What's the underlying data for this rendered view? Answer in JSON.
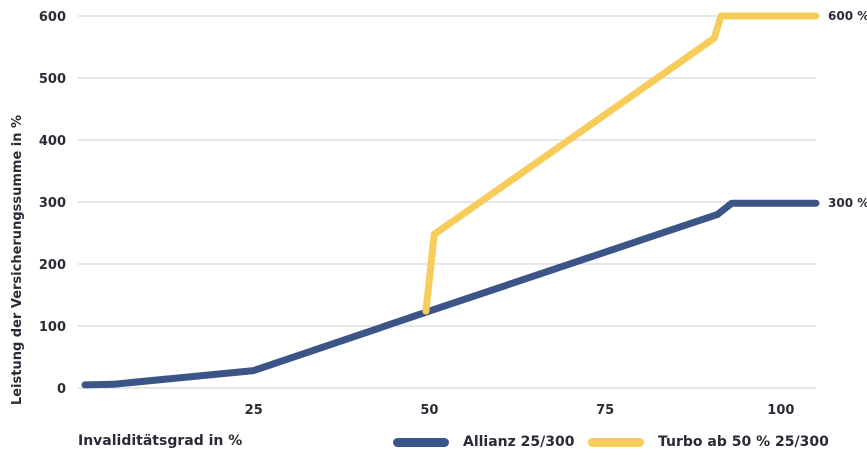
{
  "chart_data": {
    "type": "line",
    "xlabel": "Invaliditätsgrad in %",
    "ylabel": "Leistung der Versicherungssumme in %",
    "xlim": [
      0,
      105
    ],
    "ylim": [
      0,
      600
    ],
    "x_ticks": [
      25,
      50,
      75,
      100
    ],
    "x_tick_labels": [
      "25",
      "50",
      "75",
      "100"
    ],
    "y_ticks": [
      0,
      100,
      200,
      300,
      400,
      500,
      600
    ],
    "y_tick_labels": [
      "0",
      "100",
      "200",
      "300",
      "400",
      "500",
      "600"
    ],
    "grid": "horizontal",
    "legend": "bottom",
    "series": [
      {
        "name": "Allianz 25/300",
        "color": "#3c5587",
        "end_label": "300 %",
        "points": [
          [
            1,
            5
          ],
          [
            5,
            6
          ],
          [
            25,
            28
          ],
          [
            50,
            124
          ],
          [
            91,
            280
          ],
          [
            93,
            298
          ],
          [
            105,
            298
          ]
        ]
      },
      {
        "name": "Turbo ab 50 %  25/300",
        "color": "#f6cd5b",
        "end_label": "600 %",
        "points": [
          [
            49.5,
            124
          ],
          [
            50.7,
            248
          ],
          [
            90.5,
            564
          ],
          [
            91.5,
            600
          ],
          [
            105,
            600
          ]
        ]
      }
    ]
  }
}
